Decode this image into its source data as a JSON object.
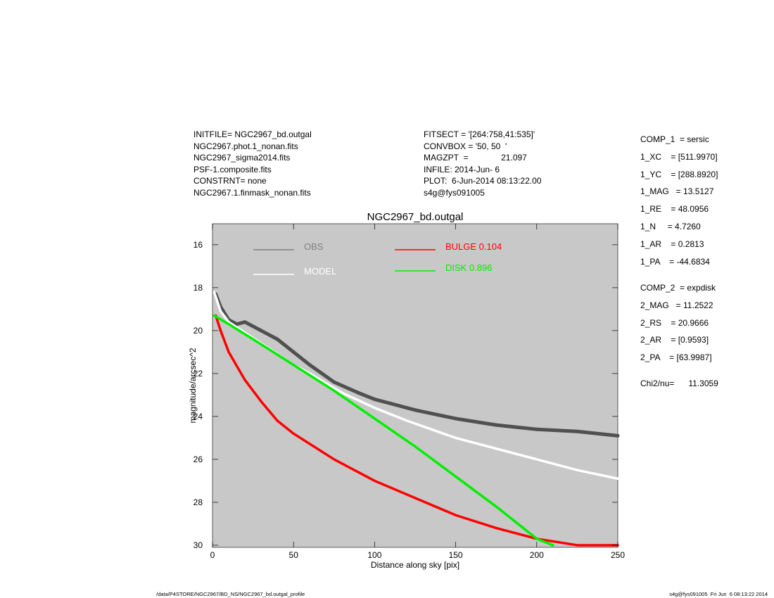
{
  "header_left": [
    "INITFILE= NGC2967_bd.outgal",
    "NGC2967.phot.1_nonan.fits",
    "NGC2967_sigma2014.fits",
    "PSF-1.composite.fits",
    "CONSTRNT= none",
    "NGC2967.1.finmask_nonan.fits"
  ],
  "header_mid": [
    "FITSECT = '[264:758,41:535]'",
    "CONVBOX = '50, 50  '",
    "MAGZPT  =              21.097",
    "INFILE: 2014-Jun- 6",
    "PLOT:  6-Jun-2014 08:13:22.00",
    "s4g@fys091005"
  ],
  "components": [
    "COMP_1  = sersic",
    "1_XC    = [511.9970]",
    "1_YC    = [288.8920]",
    "1_MAG   = 13.5127",
    "1_RE    = 48.0956",
    "1_N     = 4.7260",
    "1_AR    = 0.2813",
    "1_PA    = -44.6834",
    "COMP_2  = expdisk",
    "2_MAG   = 11.2522",
    "2_RS    = 20.9666",
    "2_AR    = [0.9593]",
    "2_PA    = [63.9987]",
    "Chi2/nu=      11.3059"
  ],
  "footer_left": "/data/P4STORE/NGC2967/BD_NS/NGC2967_bd.outgal_profile",
  "footer_right": "s4g@fys091005  Fri Jun  6 08:13:22 2014",
  "chart_data": {
    "type": "scatter",
    "title": "NGC2967_bd.outgal",
    "xlabel": "Distance along sky [pix]",
    "ylabel": "magnitude/arcsec^2",
    "xlim": [
      0,
      250
    ],
    "ylim": [
      30,
      15
    ],
    "y_inverted": true,
    "xticks": [
      0,
      50,
      100,
      150,
      200,
      250
    ],
    "yticks": [
      16,
      18,
      20,
      22,
      24,
      26,
      28,
      30
    ],
    "background": "#c8c8c8",
    "legend": [
      {
        "label": "OBS",
        "color": "#808080"
      },
      {
        "label": "MODEL",
        "color": "#ffffff"
      },
      {
        "label": "BULGE  0.104",
        "color": "#ff0000"
      },
      {
        "label": "DISK  0.896",
        "color": "#00ee00"
      }
    ],
    "series": [
      {
        "name": "OBS",
        "color": "#505050",
        "x": [
          2,
          5,
          10,
          15,
          20,
          30,
          40,
          50,
          60,
          75,
          90,
          100,
          110,
          125,
          150,
          175,
          200,
          225,
          250
        ],
        "y": [
          18.3,
          18.9,
          19.5,
          19.7,
          19.6,
          20.0,
          20.4,
          21.0,
          21.6,
          22.4,
          22.9,
          23.2,
          23.4,
          23.7,
          24.1,
          24.4,
          24.6,
          24.7,
          24.9
        ]
      },
      {
        "name": "MODEL",
        "color": "#ffffff",
        "x": [
          1,
          5,
          10,
          20,
          30,
          40,
          50,
          60,
          80,
          100,
          120,
          150,
          175,
          200,
          225,
          250
        ],
        "y": [
          18.2,
          19.1,
          19.6,
          20.1,
          20.6,
          21.1,
          21.6,
          22.0,
          22.9,
          23.6,
          24.2,
          25.0,
          25.5,
          26.0,
          26.5,
          26.9
        ]
      },
      {
        "name": "BULGE  0.104",
        "color": "#ff0000",
        "x": [
          2,
          5,
          10,
          20,
          30,
          40,
          50,
          75,
          100,
          125,
          150,
          175,
          200,
          225,
          250
        ],
        "y": [
          19.3,
          20.0,
          21.0,
          22.3,
          23.3,
          24.2,
          24.8,
          26.0,
          27.0,
          27.8,
          28.6,
          29.2,
          29.7,
          30.0,
          30.0
        ]
      },
      {
        "name": "DISK  0.896",
        "color": "#00ee00",
        "x": [
          1,
          10,
          25,
          50,
          75,
          100,
          125,
          150,
          175,
          200,
          210
        ],
        "y": [
          19.3,
          19.7,
          20.4,
          21.6,
          22.8,
          24.1,
          25.4,
          26.8,
          28.2,
          29.7,
          30.0
        ]
      }
    ]
  }
}
